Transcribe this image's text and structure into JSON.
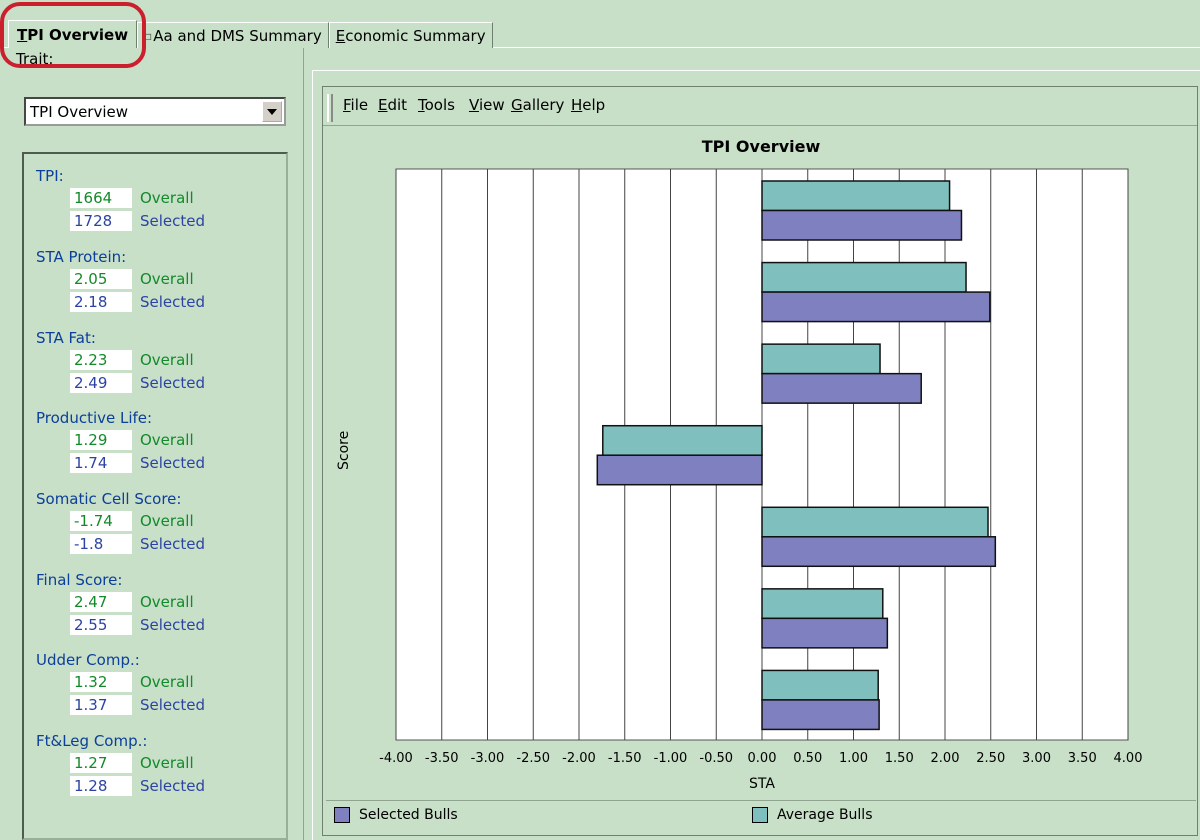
{
  "tabs": [
    {
      "label": "TPI Overview",
      "underline": "T",
      "active": true
    },
    {
      "label": "Aa and DMS Summary",
      "active": false
    },
    {
      "label": "Economic Summary",
      "underline": "E",
      "active": false
    }
  ],
  "trait": {
    "label": "Trait:",
    "selected": "TPI Overview"
  },
  "stats": [
    {
      "label": "TPI:",
      "overall": "1664",
      "selected": "1728"
    },
    {
      "label": "STA Protein:",
      "overall": "2.05",
      "selected": "2.18"
    },
    {
      "label": "STA Fat:",
      "overall": "2.23",
      "selected": "2.49"
    },
    {
      "label": "Productive Life:",
      "overall": "1.29",
      "selected": "1.74"
    },
    {
      "label": "Somatic Cell Score:",
      "overall": "-1.74",
      "selected": "-1.8"
    },
    {
      "label": "Final Score:",
      "overall": "2.47",
      "selected": "2.55"
    },
    {
      "label": "Udder Comp.:",
      "overall": "1.32",
      "selected": "1.37"
    },
    {
      "label": "Ft&Leg Comp.:",
      "overall": "1.27",
      "selected": "1.28"
    }
  ],
  "stat_words": {
    "overall": "Overall",
    "selected": "Selected"
  },
  "menu": [
    "File",
    "Edit",
    "Tools",
    "View",
    "Gallery",
    "Help"
  ],
  "colors": {
    "selected": "#7e80bf",
    "average": "#7fc0bf"
  },
  "chart_data": {
    "type": "bar",
    "orientation": "horizontal",
    "title": "TPI Overview",
    "xlabel": "STA",
    "ylabel": "Score",
    "xlim": [
      -4.0,
      4.0
    ],
    "x_ticks": [
      "-4.00",
      "-3.50",
      "-3.00",
      "-2.50",
      "-2.00",
      "-1.50",
      "-1.00",
      "-0.50",
      "0.00",
      "0.50",
      "1.00",
      "1.50",
      "2.00",
      "2.50",
      "3.00",
      "3.50",
      "4.00"
    ],
    "grid": true,
    "legend_position": "bottom",
    "series": [
      {
        "name": "Average Bulls",
        "color": "#7fc0bf",
        "values": [
          2.05,
          2.23,
          1.29,
          -1.74,
          2.47,
          1.32,
          1.27
        ]
      },
      {
        "name": "Selected Bulls",
        "color": "#7e80bf",
        "values": [
          2.18,
          2.49,
          1.74,
          -1.8,
          2.55,
          1.37,
          1.28
        ]
      }
    ]
  }
}
